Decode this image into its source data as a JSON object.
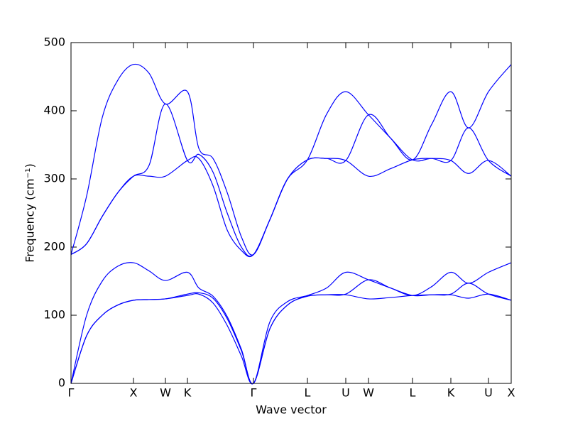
{
  "chart_data": {
    "type": "line",
    "xlabel": "Wave vector",
    "ylabel": "Frequency (cm⁻¹)",
    "xlim": [
      0,
      6.2
    ],
    "ylim": [
      0,
      500
    ],
    "yticks": [
      0,
      100,
      200,
      300,
      400,
      500
    ],
    "xticks": [
      {
        "value": 0,
        "label": "Γ"
      },
      {
        "value": 0.88,
        "label": "X"
      },
      {
        "value": 1.33,
        "label": "W"
      },
      {
        "value": 1.64,
        "label": "K"
      },
      {
        "value": 2.57,
        "label": "Γ"
      },
      {
        "value": 3.33,
        "label": "L"
      },
      {
        "value": 3.87,
        "label": "U"
      },
      {
        "value": 4.19,
        "label": "W"
      },
      {
        "value": 4.81,
        "label": "L"
      },
      {
        "value": 5.35,
        "label": "K"
      },
      {
        "value": 5.88,
        "label": "U"
      },
      {
        "value": 6.2,
        "label": "X"
      }
    ],
    "x": [
      0,
      0.22,
      0.44,
      0.66,
      0.88,
      1.1,
      1.33,
      1.64,
      1.8,
      2.0,
      2.2,
      2.4,
      2.57,
      2.8,
      3.05,
      3.33,
      3.6,
      3.87,
      4.19,
      4.5,
      4.81,
      5.08,
      5.35,
      5.6,
      5.88,
      6.2
    ],
    "series": [
      {
        "name": "band 1",
        "color": "#0000ff",
        "values": [
          0,
          70,
          100,
          115,
          122,
          123,
          124,
          129,
          131,
          118,
          85,
          40,
          0,
          80,
          115,
          128,
          130,
          130,
          124,
          126,
          129,
          130,
          130,
          125,
          131,
          122
        ]
      },
      {
        "name": "band 2",
        "color": "#0000ff",
        "values": [
          0,
          70,
          100,
          115,
          122,
          123,
          124,
          131,
          133,
          125,
          95,
          48,
          0,
          80,
          115,
          128,
          130,
          131,
          152,
          140,
          129,
          130,
          131,
          147,
          131,
          122
        ]
      },
      {
        "name": "band 3",
        "color": "#0000ff",
        "values": [
          0,
          100,
          150,
          172,
          177,
          165,
          151,
          163,
          140,
          128,
          98,
          50,
          0,
          90,
          120,
          129,
          140,
          163,
          152,
          140,
          129,
          142,
          163,
          147,
          163,
          177
        ]
      },
      {
        "name": "band 4",
        "color": "#0000ff",
        "values": [
          189,
          205,
          245,
          280,
          304,
          304,
          304,
          327,
          330,
          290,
          225,
          195,
          189,
          240,
          300,
          328,
          330,
          327,
          304,
          315,
          328,
          330,
          327,
          308,
          327,
          304
        ]
      },
      {
        "name": "band 5",
        "color": "#0000ff",
        "values": [
          189,
          205,
          245,
          280,
          304,
          320,
          410,
          327,
          336,
          310,
          250,
          200,
          189,
          240,
          300,
          328,
          330,
          327,
          394,
          360,
          328,
          330,
          327,
          375,
          327,
          304
        ]
      },
      {
        "name": "band 6",
        "color": "#0000ff",
        "values": [
          189,
          275,
          390,
          445,
          468,
          455,
          410,
          428,
          345,
          330,
          280,
          215,
          189,
          240,
          300,
          328,
          395,
          428,
          394,
          360,
          328,
          380,
          428,
          375,
          428,
          468
        ]
      }
    ]
  }
}
